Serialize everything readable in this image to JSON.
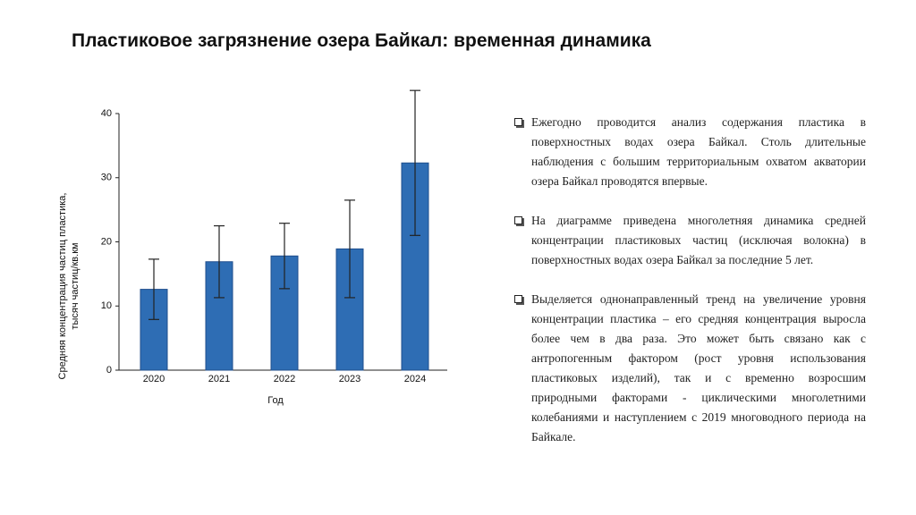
{
  "slide": {
    "title": "Пластиковое загрязнение озера Байкал: временная динамика",
    "bullets": [
      "Ежегодно проводится анализ содержания пластика в поверхностных водах озера Байкал. Столь длительные наблюдения с большим территориальным охватом акватории озера Байкал проводятся впервые.",
      "На диаграмме приведена многолетняя динамика средней концентрации пластиковых частиц (исключая волокна) в поверхностных водах озера Байкал за последние 5 лет.",
      "Выделяется однонаправленный тренд на увеличение уровня концентрации пластика – его средняя концентрация выросла более чем в два раза. Это может быть связано как с антропогенным фактором (рост уровня использования пластиковых изделий), так и с временно возросшим природными факторами - циклическими многолетними колебаниями и наступлением с 2019 многоводного периода на Байкале."
    ]
  },
  "chart_data": {
    "type": "bar",
    "categories": [
      "2020",
      "2021",
      "2022",
      "2023",
      "2024"
    ],
    "values": [
      12.6,
      16.9,
      17.8,
      18.9,
      32.3
    ],
    "errors": [
      4.7,
      5.6,
      5.1,
      7.6,
      11.3
    ],
    "color": "#2e6db4",
    "xlabel": "Год",
    "ylabel": [
      "Средняя концентрация частиц пластика,",
      "тысяч частиц/кв.км"
    ],
    "ylim": [
      0,
      40
    ],
    "yticks": [
      0,
      10,
      20,
      30,
      40
    ]
  }
}
